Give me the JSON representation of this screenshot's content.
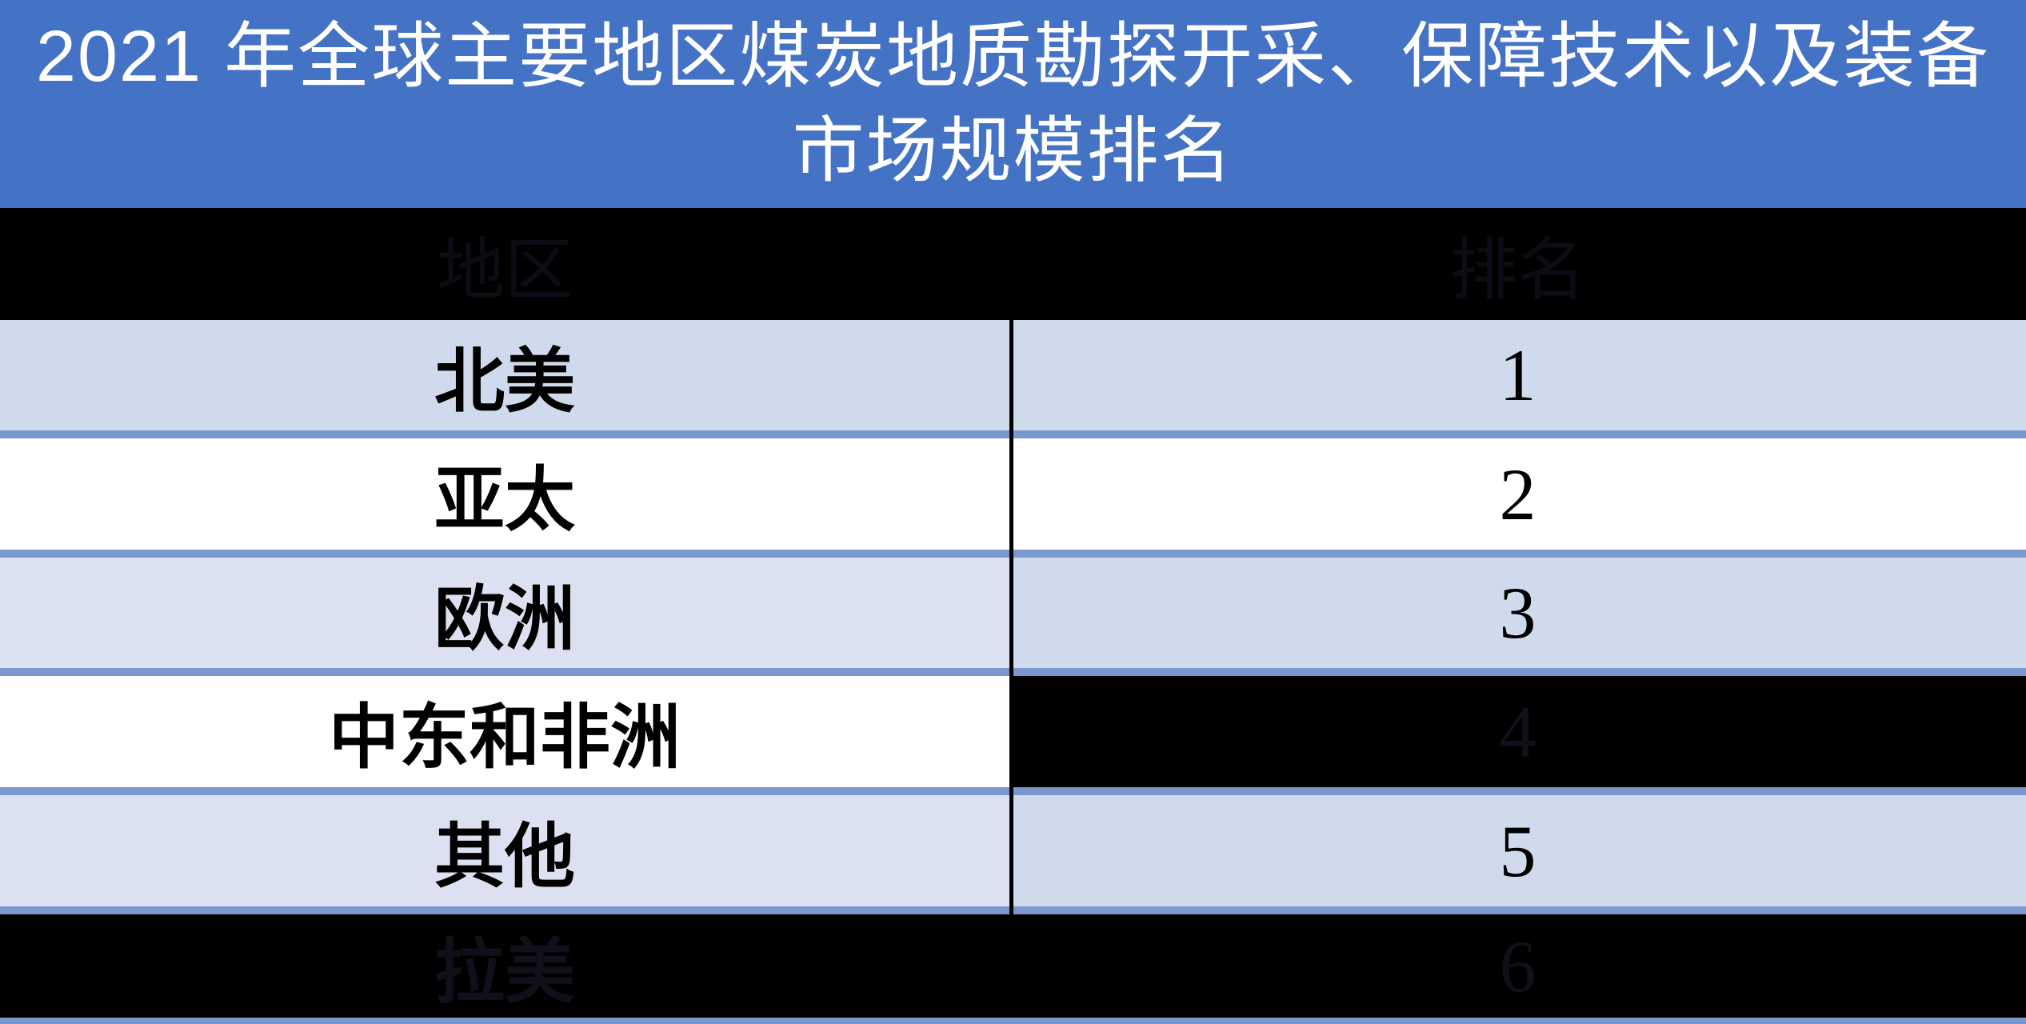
{
  "title": {
    "line1": "2021 年全球主要地区煤炭地质勘探开采、保障技术以及装备",
    "line2": "市场规模排名"
  },
  "table": {
    "columns": {
      "region": "地区",
      "rank": "排名"
    },
    "rows": [
      {
        "region": "北美",
        "rank": "1"
      },
      {
        "region": "亚太",
        "rank": "2"
      },
      {
        "region": "欧洲",
        "rank": "3"
      },
      {
        "region": "中东和非洲",
        "rank": "4"
      },
      {
        "region": "其他",
        "rank": "5"
      },
      {
        "region": "拉美",
        "rank": "6"
      }
    ]
  },
  "chart_data": {
    "type": "table",
    "title": "2021 年全球主要地区煤炭地质勘探开采、保障技术以及装备市场规模排名",
    "columns": [
      "地区",
      "排名"
    ],
    "rows": [
      [
        "北美",
        1
      ],
      [
        "亚太",
        2
      ],
      [
        "欧洲",
        3
      ],
      [
        "中东和非洲",
        4
      ],
      [
        "其他",
        5
      ],
      [
        "拉美",
        6
      ]
    ]
  },
  "colors": {
    "title_bg": "#4472c4",
    "title_text": "#ffffff",
    "header_bg": "#000000",
    "header_text_dim": "#0c0c15",
    "row_light_blue": "#cfdaec",
    "row_lavender": "#dce1f1",
    "row_white": "#ffffff",
    "row_black": "#000000",
    "rule_blue": "#7a97ce",
    "divider_black": "#000000",
    "cell_text": "#000000"
  }
}
